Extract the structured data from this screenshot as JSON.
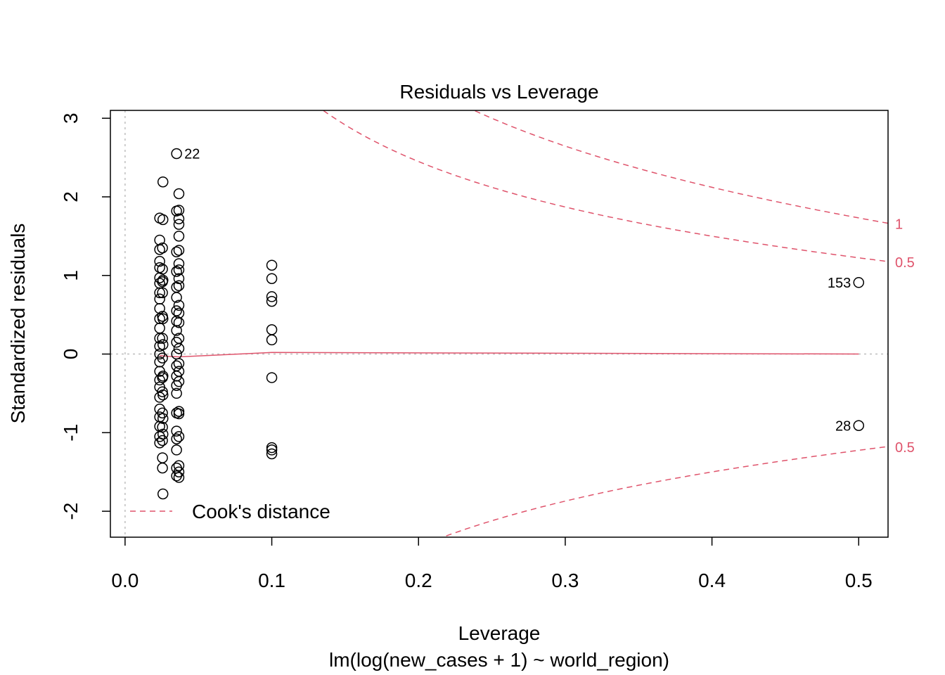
{
  "chart_data": {
    "type": "scatter",
    "title": "Residuals vs Leverage",
    "xlabel": "Leverage",
    "sublabel": "lm(log(new_cases + 1) ~ world_region)",
    "ylabel": "Standardized residuals",
    "xlim": [
      -0.01,
      0.52
    ],
    "ylim": [
      -2.33,
      3.1
    ],
    "xticks": [
      0.0,
      0.1,
      0.2,
      0.3,
      0.4,
      0.5
    ],
    "xtick_labels": [
      "0.0",
      "0.1",
      "0.2",
      "0.3",
      "0.4",
      "0.5"
    ],
    "yticks": [
      -2,
      -1,
      0,
      1,
      2,
      3
    ],
    "ytick_labels": [
      "-2",
      "-1",
      "0",
      "1",
      "2",
      "3"
    ],
    "grid": false,
    "legend": {
      "placement": "bottom-left",
      "label": "Cook's distance"
    },
    "colors": {
      "points": "#000000",
      "cook": "#DF536B",
      "reference": "#BEBEBE"
    },
    "points": [
      {
        "x": 0.0236,
        "y": 1.73
      },
      {
        "x": 0.0236,
        "y": 1.45
      },
      {
        "x": 0.0236,
        "y": 1.33
      },
      {
        "x": 0.0236,
        "y": 1.18
      },
      {
        "x": 0.0236,
        "y": 1.1
      },
      {
        "x": 0.0236,
        "y": 0.97
      },
      {
        "x": 0.0236,
        "y": 0.9
      },
      {
        "x": 0.0236,
        "y": 0.78
      },
      {
        "x": 0.0236,
        "y": 0.7
      },
      {
        "x": 0.0236,
        "y": 0.58
      },
      {
        "x": 0.0236,
        "y": 0.45
      },
      {
        "x": 0.0236,
        "y": 0.33
      },
      {
        "x": 0.0236,
        "y": 0.2
      },
      {
        "x": 0.0236,
        "y": 0.1
      },
      {
        "x": 0.0236,
        "y": 0.0
      },
      {
        "x": 0.0236,
        "y": -0.1
      },
      {
        "x": 0.0236,
        "y": -0.22
      },
      {
        "x": 0.0236,
        "y": -0.33
      },
      {
        "x": 0.0236,
        "y": -0.42
      },
      {
        "x": 0.0236,
        "y": -0.55
      },
      {
        "x": 0.0236,
        "y": -0.7
      },
      {
        "x": 0.0236,
        "y": -0.8
      },
      {
        "x": 0.0236,
        "y": -0.92
      },
      {
        "x": 0.0236,
        "y": -1.05
      },
      {
        "x": 0.0236,
        "y": -1.13
      },
      {
        "x": 0.0255,
        "y": 1.35
      },
      {
        "x": 0.0255,
        "y": 1.08
      },
      {
        "x": 0.0255,
        "y": 0.92
      },
      {
        "x": 0.0255,
        "y": 0.78
      },
      {
        "x": 0.0255,
        "y": 0.48
      },
      {
        "x": 0.0255,
        "y": 0.2
      },
      {
        "x": 0.0255,
        "y": -0.05
      },
      {
        "x": 0.0255,
        "y": -0.3
      },
      {
        "x": 0.0255,
        "y": -0.48
      },
      {
        "x": 0.0255,
        "y": -0.75
      },
      {
        "x": 0.0255,
        "y": -0.93
      },
      {
        "x": 0.0255,
        "y": -1.1
      },
      {
        "x": 0.0255,
        "y": -1.32
      },
      {
        "x": 0.0255,
        "y": -1.45
      },
      {
        "x": 0.0258,
        "y": 2.19
      },
      {
        "x": 0.0258,
        "y": 1.71
      },
      {
        "x": 0.0258,
        "y": 0.94
      },
      {
        "x": 0.0258,
        "y": 0.45
      },
      {
        "x": 0.0258,
        "y": 0.12
      },
      {
        "x": 0.0258,
        "y": -0.28
      },
      {
        "x": 0.0258,
        "y": -0.52
      },
      {
        "x": 0.0258,
        "y": -0.82
      },
      {
        "x": 0.0258,
        "y": -1.02
      },
      {
        "x": 0.0258,
        "y": -1.78
      },
      {
        "x": 0.0351,
        "y": 2.55,
        "label": "22"
      },
      {
        "x": 0.0351,
        "y": 1.82
      },
      {
        "x": 0.0351,
        "y": 1.3
      },
      {
        "x": 0.0351,
        "y": 1.05
      },
      {
        "x": 0.0351,
        "y": 0.85
      },
      {
        "x": 0.0351,
        "y": 0.72
      },
      {
        "x": 0.0351,
        "y": 0.55
      },
      {
        "x": 0.0351,
        "y": 0.42
      },
      {
        "x": 0.0351,
        "y": 0.3
      },
      {
        "x": 0.0351,
        "y": 0.15
      },
      {
        "x": 0.0351,
        "y": 0.0
      },
      {
        "x": 0.0351,
        "y": -0.15
      },
      {
        "x": 0.0351,
        "y": -0.28
      },
      {
        "x": 0.0351,
        "y": -0.4
      },
      {
        "x": 0.0351,
        "y": -0.5
      },
      {
        "x": 0.0351,
        "y": -0.75
      },
      {
        "x": 0.0351,
        "y": -0.98
      },
      {
        "x": 0.0351,
        "y": -1.08
      },
      {
        "x": 0.0351,
        "y": -1.22
      },
      {
        "x": 0.0351,
        "y": -1.45
      },
      {
        "x": 0.0351,
        "y": -1.55
      },
      {
        "x": 0.0367,
        "y": 2.04
      },
      {
        "x": 0.0367,
        "y": 1.83
      },
      {
        "x": 0.0367,
        "y": 1.72
      },
      {
        "x": 0.0367,
        "y": 1.65
      },
      {
        "x": 0.0367,
        "y": 1.5
      },
      {
        "x": 0.0367,
        "y": 1.32
      },
      {
        "x": 0.0367,
        "y": 1.15
      },
      {
        "x": 0.0367,
        "y": 1.07
      },
      {
        "x": 0.0367,
        "y": 0.96
      },
      {
        "x": 0.0367,
        "y": 0.87
      },
      {
        "x": 0.0367,
        "y": 0.62
      },
      {
        "x": 0.0367,
        "y": 0.52
      },
      {
        "x": 0.0367,
        "y": 0.4
      },
      {
        "x": 0.0367,
        "y": 0.2
      },
      {
        "x": 0.0367,
        "y": 0.07
      },
      {
        "x": 0.0367,
        "y": -0.12
      },
      {
        "x": 0.0367,
        "y": -0.22
      },
      {
        "x": 0.0367,
        "y": -0.35
      },
      {
        "x": 0.0367,
        "y": -0.73
      },
      {
        "x": 0.0367,
        "y": -0.76
      },
      {
        "x": 0.0367,
        "y": -1.05
      },
      {
        "x": 0.0367,
        "y": -1.42
      },
      {
        "x": 0.0367,
        "y": -1.5
      },
      {
        "x": 0.0367,
        "y": -1.57
      },
      {
        "x": 0.1,
        "y": 1.13
      },
      {
        "x": 0.1,
        "y": 0.96
      },
      {
        "x": 0.1,
        "y": 0.73
      },
      {
        "x": 0.1,
        "y": 0.67
      },
      {
        "x": 0.1,
        "y": 0.31
      },
      {
        "x": 0.1,
        "y": 0.18
      },
      {
        "x": 0.1,
        "y": -0.3
      },
      {
        "x": 0.1,
        "y": -1.19
      },
      {
        "x": 0.1,
        "y": -1.22
      },
      {
        "x": 0.1,
        "y": -1.27
      },
      {
        "x": 0.5,
        "y": 0.91,
        "label": "153"
      },
      {
        "x": 0.5,
        "y": -0.91,
        "label": "28"
      }
    ],
    "smooth": {
      "x": [
        0.0236,
        0.03,
        0.037,
        0.06,
        0.1,
        0.2,
        0.3,
        0.4,
        0.5
      ],
      "y": [
        -0.02,
        -0.03,
        -0.035,
        -0.015,
        0.02,
        0.015,
        0.01,
        0.005,
        0.0
      ]
    },
    "cook_contours": [
      {
        "level": 0.5,
        "label": "0.5",
        "side": "upper"
      },
      {
        "level": 1,
        "label": "1",
        "side": "upper"
      },
      {
        "level": 0.5,
        "label": "0.5",
        "side": "lower"
      }
    ],
    "cook_p": 3
  }
}
